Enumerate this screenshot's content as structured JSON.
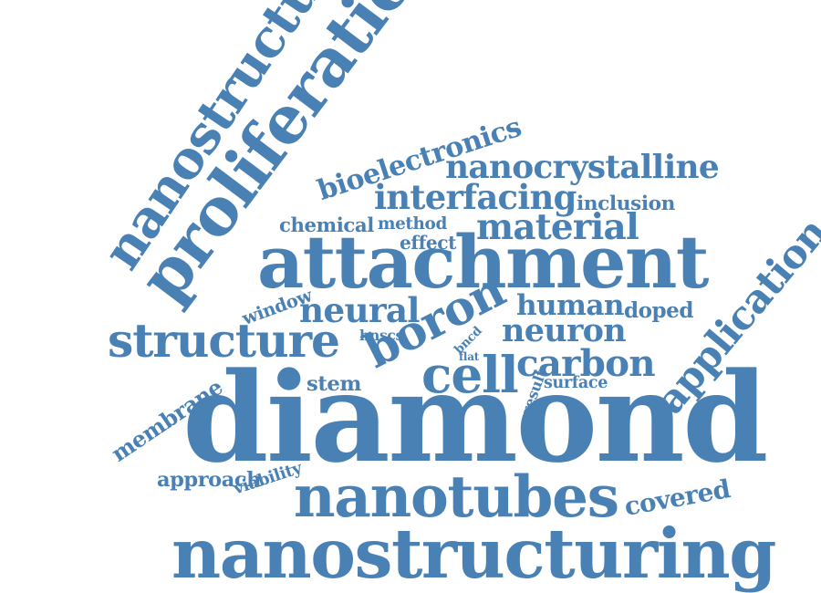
{
  "word_cloud": {
    "color": "#4a81b5",
    "words": [
      {
        "key": "diamond",
        "text": "diamond"
      },
      {
        "key": "nanostructuring",
        "text": "nanostructuring"
      },
      {
        "key": "attachment",
        "text": "attachment"
      },
      {
        "key": "nanotubes",
        "text": "nanotubes"
      },
      {
        "key": "nanostructured",
        "text": "nanostructured"
      },
      {
        "key": "proliferation",
        "text": "proliferation"
      },
      {
        "key": "structure",
        "text": "structure"
      },
      {
        "key": "boron",
        "text": "boron"
      },
      {
        "key": "cell",
        "text": "cell"
      },
      {
        "key": "carbon",
        "text": "carbon"
      },
      {
        "key": "application",
        "text": "application"
      },
      {
        "key": "interfacing",
        "text": "interfacing"
      },
      {
        "key": "material",
        "text": "material"
      },
      {
        "key": "nanocrystalline",
        "text": "nanocrystalline"
      },
      {
        "key": "bioelectronics",
        "text": "bioelectronics"
      },
      {
        "key": "neural",
        "text": "neural"
      },
      {
        "key": "neuron",
        "text": "neuron"
      },
      {
        "key": "human",
        "text": "human"
      },
      {
        "key": "doped",
        "text": "doped"
      },
      {
        "key": "membrane",
        "text": "membrane"
      },
      {
        "key": "covered",
        "text": "covered"
      },
      {
        "key": "approach",
        "text": "approach"
      },
      {
        "key": "inclusion",
        "text": "inclusion"
      },
      {
        "key": "chemical",
        "text": "chemical"
      },
      {
        "key": "method",
        "text": "method"
      },
      {
        "key": "effect",
        "text": "effect"
      },
      {
        "key": "stem",
        "text": "stem"
      },
      {
        "key": "surface",
        "text": "surface"
      },
      {
        "key": "viability",
        "text": "viability"
      },
      {
        "key": "window",
        "text": "window"
      },
      {
        "key": "hnscs",
        "text": "hnscs"
      },
      {
        "key": "bncd",
        "text": "bncd"
      },
      {
        "key": "result",
        "text": "result"
      },
      {
        "key": "flat",
        "text": "flat"
      }
    ]
  }
}
